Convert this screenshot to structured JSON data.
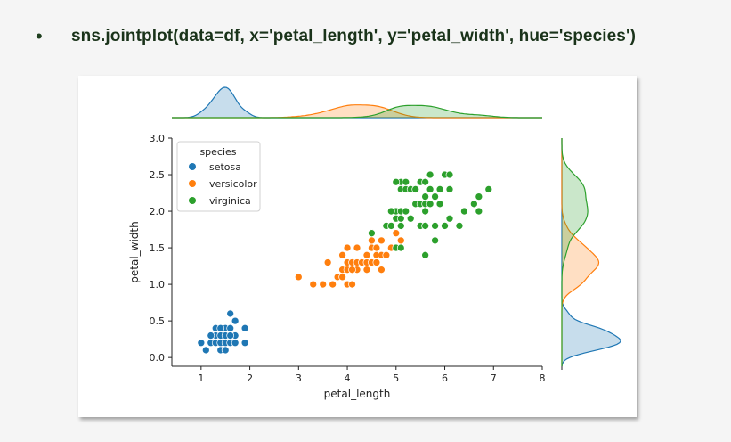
{
  "slide": {
    "bullet": "•",
    "code": "sns.jointplot(data=df, x='petal_length', y='petal_width', hue='species')"
  },
  "chart_data": {
    "type": "scatter",
    "title": "",
    "xlabel": "petal_length",
    "ylabel": "petal_width",
    "xlim": [
      0.4,
      8.0
    ],
    "ylim": [
      -0.12,
      3.0
    ],
    "xticks": [
      1,
      2,
      3,
      4,
      5,
      6,
      7,
      8
    ],
    "yticks": [
      0.0,
      0.5,
      1.0,
      1.5,
      2.0,
      2.5,
      3.0
    ],
    "ytick_labels": [
      "0.0",
      "0.5",
      "1.0",
      "1.5",
      "2.0",
      "2.5",
      "3.0"
    ],
    "legend": {
      "title": "species",
      "position": "upper-left"
    },
    "marginals": {
      "top": "kde",
      "right": "kde",
      "fill": true
    },
    "series": [
      {
        "name": "setosa",
        "color": "#1f77b4",
        "points": [
          [
            1.0,
            0.2
          ],
          [
            1.1,
            0.1
          ],
          [
            1.2,
            0.2
          ],
          [
            1.3,
            0.2
          ],
          [
            1.3,
            0.3
          ],
          [
            1.3,
            0.4
          ],
          [
            1.4,
            0.2
          ],
          [
            1.4,
            0.1
          ],
          [
            1.4,
            0.3
          ],
          [
            1.5,
            0.2
          ],
          [
            1.5,
            0.1
          ],
          [
            1.5,
            0.4
          ],
          [
            1.6,
            0.2
          ],
          [
            1.6,
            0.6
          ],
          [
            1.6,
            0.4
          ],
          [
            1.7,
            0.2
          ],
          [
            1.7,
            0.3
          ],
          [
            1.7,
            0.5
          ],
          [
            1.5,
            0.3
          ],
          [
            1.6,
            0.3
          ],
          [
            1.4,
            0.4
          ],
          [
            1.9,
            0.4
          ],
          [
            1.9,
            0.2
          ],
          [
            1.2,
            0.3
          ],
          [
            1.5,
            0.1
          ]
        ]
      },
      {
        "name": "versicolor",
        "color": "#ff7f0e",
        "points": [
          [
            3.0,
            1.1
          ],
          [
            3.3,
            1.0
          ],
          [
            3.5,
            1.0
          ],
          [
            3.6,
            1.3
          ],
          [
            3.7,
            1.0
          ],
          [
            3.8,
            1.1
          ],
          [
            3.9,
            1.1
          ],
          [
            3.9,
            1.2
          ],
          [
            3.9,
            1.4
          ],
          [
            4.0,
            1.0
          ],
          [
            4.0,
            1.2
          ],
          [
            4.0,
            1.3
          ],
          [
            4.1,
            1.0
          ],
          [
            4.1,
            1.3
          ],
          [
            4.2,
            1.2
          ],
          [
            4.2,
            1.3
          ],
          [
            4.2,
            1.5
          ],
          [
            4.3,
            1.3
          ],
          [
            4.4,
            1.2
          ],
          [
            4.4,
            1.3
          ],
          [
            4.4,
            1.4
          ],
          [
            4.5,
            1.3
          ],
          [
            4.5,
            1.5
          ],
          [
            4.5,
            1.6
          ],
          [
            4.6,
            1.3
          ],
          [
            4.6,
            1.4
          ],
          [
            4.6,
            1.5
          ],
          [
            4.7,
            1.2
          ],
          [
            4.7,
            1.4
          ],
          [
            4.7,
            1.6
          ],
          [
            4.8,
            1.4
          ],
          [
            4.8,
            1.8
          ],
          [
            4.9,
            1.5
          ],
          [
            5.0,
            1.7
          ],
          [
            5.1,
            1.6
          ],
          [
            3.5,
            1.0
          ],
          [
            3.6,
            1.3
          ],
          [
            4.0,
            1.5
          ],
          [
            4.1,
            1.2
          ]
        ]
      },
      {
        "name": "virginica",
        "color": "#2ca02c",
        "points": [
          [
            4.5,
            1.7
          ],
          [
            4.8,
            1.8
          ],
          [
            4.9,
            1.8
          ],
          [
            4.9,
            2.0
          ],
          [
            5.0,
            1.5
          ],
          [
            5.0,
            1.9
          ],
          [
            5.0,
            2.0
          ],
          [
            5.1,
            1.5
          ],
          [
            5.1,
            1.8
          ],
          [
            5.1,
            1.9
          ],
          [
            5.1,
            2.0
          ],
          [
            5.1,
            2.3
          ],
          [
            5.1,
            2.4
          ],
          [
            5.2,
            2.0
          ],
          [
            5.2,
            2.3
          ],
          [
            5.3,
            1.9
          ],
          [
            5.3,
            2.3
          ],
          [
            5.4,
            2.1
          ],
          [
            5.4,
            2.3
          ],
          [
            5.5,
            1.8
          ],
          [
            5.5,
            2.1
          ],
          [
            5.5,
            2.4
          ],
          [
            5.6,
            1.4
          ],
          [
            5.6,
            1.8
          ],
          [
            5.6,
            2.1
          ],
          [
            5.6,
            2.2
          ],
          [
            5.6,
            2.4
          ],
          [
            5.7,
            2.1
          ],
          [
            5.7,
            2.3
          ],
          [
            5.7,
            2.5
          ],
          [
            5.8,
            1.6
          ],
          [
            5.8,
            1.8
          ],
          [
            5.8,
            2.2
          ],
          [
            5.9,
            2.1
          ],
          [
            5.9,
            2.3
          ],
          [
            6.0,
            1.8
          ],
          [
            6.0,
            2.5
          ],
          [
            6.1,
            1.9
          ],
          [
            6.1,
            2.3
          ],
          [
            6.1,
            2.5
          ],
          [
            6.3,
            1.8
          ],
          [
            6.4,
            2.0
          ],
          [
            6.6,
            2.1
          ],
          [
            6.7,
            2.0
          ],
          [
            6.7,
            2.2
          ],
          [
            6.9,
            2.3
          ],
          [
            4.9,
            2.0
          ],
          [
            5.0,
            2.4
          ],
          [
            5.2,
            2.4
          ],
          [
            5.6,
            2.0
          ]
        ]
      }
    ]
  }
}
